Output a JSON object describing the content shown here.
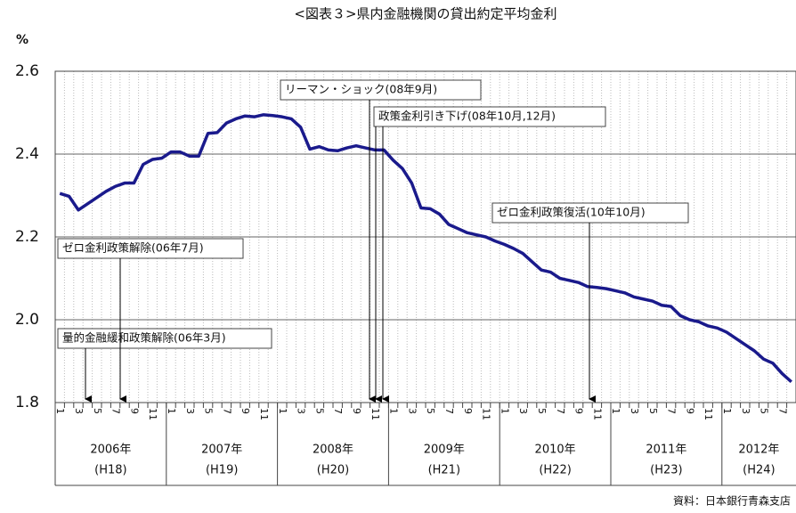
{
  "chart_data": {
    "type": "line",
    "title": "<図表３>県内金融機関の貸出約定平均金利",
    "y_label": "%",
    "source": "資料：日本銀行青森支店",
    "categories": [
      "1",
      null,
      "3",
      null,
      "5",
      null,
      "7",
      null,
      "9",
      null,
      "11",
      null,
      "1",
      null,
      "3",
      null,
      "5",
      null,
      "7",
      null,
      "9",
      null,
      "11",
      null,
      "1",
      null,
      "3",
      null,
      "5",
      null,
      "7",
      null,
      "9",
      null,
      "11",
      null,
      "1",
      null,
      "3",
      null,
      "5",
      null,
      "7",
      null,
      "9",
      null,
      "11",
      null,
      "1",
      null,
      "3",
      null,
      "5",
      null,
      "7",
      null,
      "9",
      null,
      "11",
      null,
      "1",
      null,
      "3",
      null,
      "5",
      null,
      "7",
      null,
      "9",
      null,
      "11",
      null,
      "1",
      null,
      "3",
      null,
      "5",
      null,
      "7",
      null
    ],
    "years": [
      {
        "label": "2006年",
        "era": "(H18)"
      },
      {
        "label": "2007年",
        "era": "(H19)"
      },
      {
        "label": "2008年",
        "era": "(H20)"
      },
      {
        "label": "2009年",
        "era": "(H21)"
      },
      {
        "label": "2010年",
        "era": "(H22)"
      },
      {
        "label": "2011年",
        "era": "(H23)"
      },
      {
        "label": "2012年",
        "era": "(H24)"
      }
    ],
    "series": [
      {
        "color": "#1a1a8c",
        "values": [
          2.305,
          2.298,
          2.265,
          2.28,
          2.295,
          2.31,
          2.322,
          2.33,
          2.33,
          2.375,
          2.387,
          2.39,
          2.405,
          2.405,
          2.395,
          2.395,
          2.45,
          2.452,
          2.475,
          2.485,
          2.492,
          2.49,
          2.495,
          2.493,
          2.49,
          2.485,
          2.465,
          2.412,
          2.418,
          2.41,
          2.408,
          2.415,
          2.42,
          2.415,
          2.41,
          2.41,
          2.385,
          2.365,
          2.33,
          2.27,
          2.268,
          2.255,
          2.23,
          2.22,
          2.21,
          2.205,
          2.2,
          2.19,
          2.182,
          2.172,
          2.16,
          2.14,
          2.12,
          2.115,
          2.1,
          2.095,
          2.09,
          2.08,
          2.078,
          2.075,
          2.07,
          2.065,
          2.055,
          2.05,
          2.045,
          2.035,
          2.032,
          2.01,
          2.0,
          1.995,
          1.985,
          1.98,
          1.97,
          1.955,
          1.94,
          1.925,
          1.905,
          1.895,
          1.87,
          1.85
        ]
      }
    ],
    "ylim": [
      1.8,
      2.6
    ],
    "yticks": [
      1.8,
      {
        "value": 2,
        "label": "2.0"
      },
      2.2,
      2.4,
      2.6
    ],
    "grid": true,
    "annotations": [
      "量的金融緩和政策解除(06年3月)",
      "ゼロ金利政策解除(06年7月)",
      "リーマン・ショック(08年9月)",
      "政策金利引き下げ(08年10月,12月)",
      "ゼロ金利政策復活(10年10月)"
    ]
  }
}
